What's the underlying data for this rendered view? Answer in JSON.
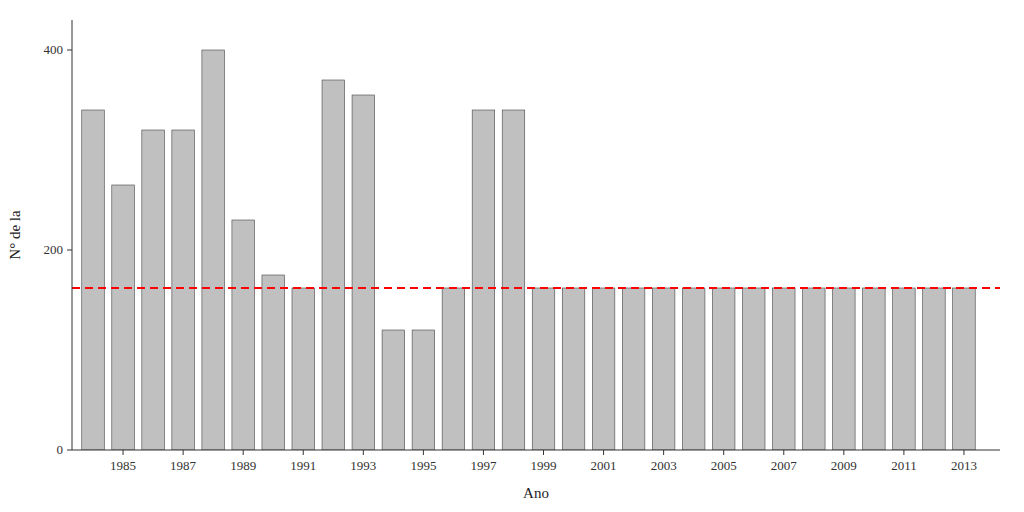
{
  "chart_data": {
    "type": "bar",
    "x": [
      1984,
      1985,
      1986,
      1987,
      1988,
      1989,
      1990,
      1991,
      1992,
      1993,
      1994,
      1995,
      1996,
      1997,
      1998,
      1999,
      2000,
      2001,
      2002,
      2003,
      2004,
      2005,
      2006,
      2007,
      2008,
      2009,
      2010,
      2011,
      2012,
      2013
    ],
    "values": [
      340,
      265,
      320,
      320,
      400,
      230,
      175,
      162,
      370,
      355,
      120,
      120,
      162,
      340,
      340,
      162,
      162,
      162,
      162,
      162,
      162,
      162,
      162,
      162,
      162,
      162,
      162,
      162,
      162,
      162
    ],
    "color": "#C0C0C0",
    "xlabel": "Ano",
    "ylabel": "N° de la",
    "xlim": [
      1983.3,
      2014.2
    ],
    "xticks": [
      1985,
      1987,
      1989,
      1991,
      1993,
      1995,
      1997,
      1999,
      2001,
      2003,
      2005,
      2007,
      2009,
      2011,
      2013
    ],
    "ylim": [
      0,
      430
    ],
    "yticks": [
      0,
      200,
      400
    ],
    "grid": false,
    "reference_line": {
      "y": 162,
      "color": "#FF0000",
      "line_style": "dashed"
    }
  }
}
